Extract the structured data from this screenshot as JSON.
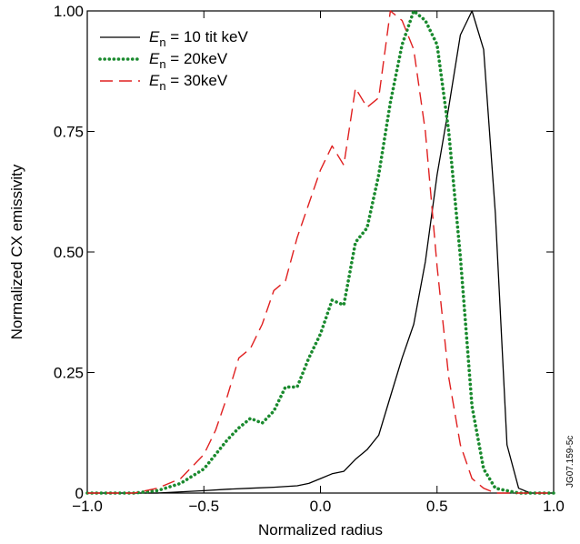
{
  "chart_data": {
    "type": "line",
    "title": "",
    "xlabel": "Normalized radius",
    "ylabel": "Normalized CX emissivity",
    "xlim": [
      -1.0,
      1.0
    ],
    "ylim": [
      0,
      1.0
    ],
    "x_ticks": [
      -1.0,
      -0.5,
      0.0,
      0.5,
      1.0
    ],
    "x_tick_labels": [
      "−1.0",
      "−0.5",
      "0.0",
      "0.5",
      "1.0"
    ],
    "y_ticks": [
      0,
      0.25,
      0.5,
      0.75,
      1.0
    ],
    "y_tick_labels": [
      "0",
      "0.25",
      "0.50",
      "0.75",
      "1.00"
    ],
    "grid": false,
    "legend_position": "top-left",
    "series": [
      {
        "name": "E_n = 10 tit keV",
        "legend_var": "E",
        "legend_sub": "n",
        "legend_rest": " = 10 tit keV",
        "color": "#000000",
        "style": "solid",
        "x": [
          -1.0,
          -0.7,
          -0.5,
          -0.4,
          -0.3,
          -0.2,
          -0.1,
          -0.05,
          0.0,
          0.05,
          0.1,
          0.15,
          0.2,
          0.25,
          0.3,
          0.35,
          0.4,
          0.45,
          0.5,
          0.55,
          0.6,
          0.65,
          0.7,
          0.75,
          0.8,
          0.85,
          0.9,
          1.0
        ],
        "y": [
          0.0,
          0.0,
          0.005,
          0.008,
          0.01,
          0.012,
          0.015,
          0.02,
          0.03,
          0.04,
          0.045,
          0.07,
          0.09,
          0.12,
          0.2,
          0.28,
          0.35,
          0.48,
          0.66,
          0.8,
          0.95,
          1.0,
          0.92,
          0.58,
          0.1,
          0.01,
          0.0,
          0.0
        ]
      },
      {
        "name": "E_n = 20keV",
        "legend_var": "E",
        "legend_sub": "n",
        "legend_rest": " = 20keV",
        "color": "#1a8a2e",
        "style": "dotted",
        "x": [
          -1.0,
          -0.8,
          -0.7,
          -0.6,
          -0.5,
          -0.45,
          -0.4,
          -0.35,
          -0.3,
          -0.25,
          -0.2,
          -0.15,
          -0.1,
          -0.05,
          0.0,
          0.05,
          0.1,
          0.15,
          0.2,
          0.25,
          0.3,
          0.35,
          0.4,
          0.45,
          0.5,
          0.55,
          0.6,
          0.65,
          0.7,
          0.75,
          0.8,
          0.85,
          0.9,
          0.95,
          1.0
        ],
        "y": [
          0.0,
          0.0,
          0.005,
          0.02,
          0.05,
          0.08,
          0.11,
          0.135,
          0.155,
          0.145,
          0.17,
          0.22,
          0.22,
          0.28,
          0.33,
          0.4,
          0.39,
          0.52,
          0.55,
          0.66,
          0.81,
          0.93,
          1.0,
          0.98,
          0.93,
          0.75,
          0.49,
          0.18,
          0.05,
          0.01,
          0.005,
          0.0,
          0.0,
          0.0,
          0.0
        ]
      },
      {
        "name": "E_n = 30keV",
        "legend_var": "E",
        "legend_sub": "n",
        "legend_rest": " = 30keV",
        "color": "#e02020",
        "style": "dashed",
        "x": [
          -1.0,
          -0.8,
          -0.7,
          -0.6,
          -0.5,
          -0.45,
          -0.4,
          -0.35,
          -0.3,
          -0.25,
          -0.2,
          -0.15,
          -0.1,
          -0.05,
          0.0,
          0.05,
          0.1,
          0.15,
          0.2,
          0.25,
          0.3,
          0.35,
          0.4,
          0.45,
          0.5,
          0.55,
          0.6,
          0.65,
          0.7,
          0.75,
          0.8,
          0.85,
          0.9,
          1.0
        ],
        "y": [
          0.0,
          0.0,
          0.01,
          0.03,
          0.08,
          0.13,
          0.2,
          0.28,
          0.3,
          0.35,
          0.42,
          0.44,
          0.53,
          0.6,
          0.67,
          0.72,
          0.68,
          0.84,
          0.8,
          0.82,
          1.0,
          0.98,
          0.92,
          0.75,
          0.47,
          0.24,
          0.1,
          0.03,
          0.01,
          0.0,
          0.0,
          0.0,
          0.0,
          0.0
        ]
      }
    ],
    "annotation": "JG07.159-5c"
  }
}
